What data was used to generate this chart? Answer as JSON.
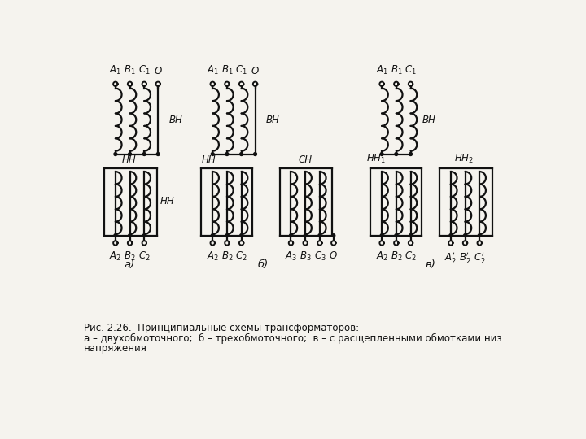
{
  "caption_line1": "Рис. 2.26.  Принципиальные схемы трансформаторов:",
  "caption_line2": "а – двухобмоточного;  б – трехобмоточного;  в – с расщепленными обмотками низ",
  "caption_line3": "напряжения",
  "bg_color": "#f5f3ee",
  "line_color": "#111111",
  "font_size": 8.5,
  "label_font_size": 8.5,
  "lw": 1.6
}
